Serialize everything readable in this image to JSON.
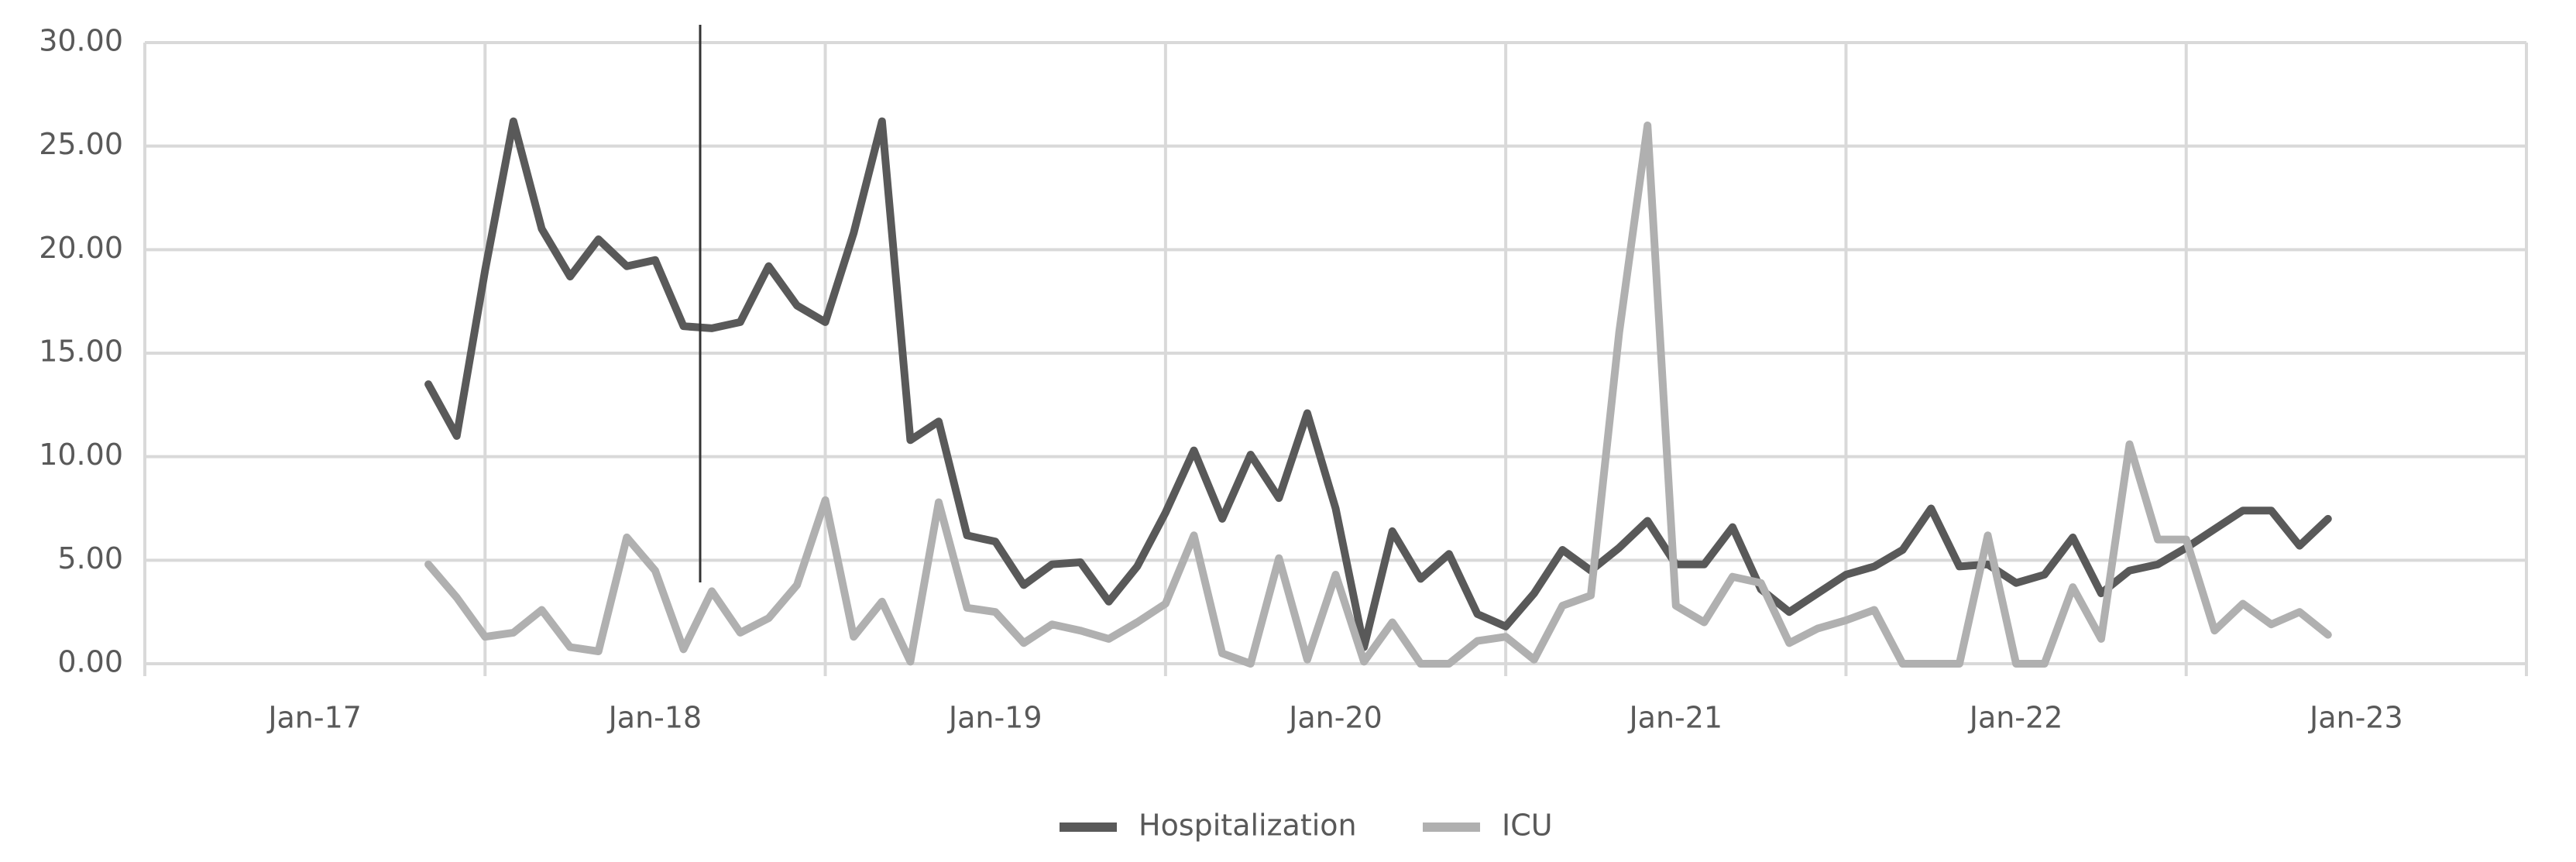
{
  "chart_data": {
    "type": "line",
    "x": [
      "May-17",
      "Jun-17",
      "Jul-17",
      "Aug-17",
      "Sep-17",
      "Oct-17",
      "Nov-17",
      "Dec-17",
      "Jan-18",
      "Feb-18",
      "Mar-18",
      "Apr-18",
      "May-18",
      "Jun-18",
      "Jul-18",
      "Aug-18",
      "Sep-18",
      "Oct-18",
      "Nov-18",
      "Dec-18",
      "Jan-19",
      "Feb-19",
      "Mar-19",
      "Apr-19",
      "May-19",
      "Jun-19",
      "Jul-19",
      "Aug-19",
      "Sep-19",
      "Oct-19",
      "Nov-19",
      "Dec-19",
      "Jan-20",
      "Feb-20",
      "Mar-20",
      "Apr-20",
      "May-20",
      "Jun-20",
      "Jul-20",
      "Aug-20",
      "Sep-20",
      "Oct-20",
      "Nov-20",
      "Dec-20",
      "Jan-21",
      "Feb-21",
      "Mar-21",
      "Apr-21",
      "May-21",
      "Jun-21",
      "Jul-21",
      "Aug-21",
      "Sep-21",
      "Oct-21",
      "Nov-21",
      "Dec-21",
      "Jan-22",
      "Feb-22",
      "Mar-22",
      "Apr-22",
      "May-22",
      "Jun-22",
      "Jul-22",
      "Aug-22",
      "Sep-22",
      "Oct-22",
      "Nov-22",
      "Dec-22"
    ],
    "series": [
      {
        "name": "Hospitalization",
        "color": "#595959",
        "values": [
          13.5,
          11,
          19,
          26.2,
          21,
          18.7,
          20.5,
          19.2,
          19.5,
          16.3,
          16.2,
          16.5,
          19.2,
          17.3,
          16.5,
          20.8,
          26.2,
          10.8,
          11.7,
          6.2,
          5.9,
          3.8,
          4.8,
          4.9,
          3,
          4.7,
          7.3,
          10.3,
          7,
          10.1,
          8,
          12.1,
          7.5,
          0.8,
          6.4,
          4.1,
          5.3,
          2.4,
          1.8,
          3.4,
          5.5,
          4.5,
          5.6,
          6.9,
          4.8,
          4.8,
          6.6,
          3.6,
          2.5,
          3.4,
          4.3,
          4.7,
          5.5,
          7.5,
          4.7,
          4.8,
          3.9,
          4.3,
          6.1,
          3.4,
          4.5,
          4.8,
          5.6,
          6.5,
          7.4,
          7.4,
          5.7,
          7
        ]
      },
      {
        "name": "ICU",
        "color": "#b0b0b0",
        "values": [
          4.8,
          3.2,
          1.3,
          1.5,
          2.6,
          0.8,
          0.6,
          6.1,
          4.5,
          0.7,
          3.5,
          1.5,
          2.2,
          3.8,
          7.9,
          1.3,
          3,
          0.1,
          7.8,
          2.7,
          2.5,
          1,
          1.9,
          1.6,
          1.2,
          2,
          2.9,
          6.2,
          0.5,
          0,
          5.1,
          0.2,
          4.3,
          0.1,
          2,
          0,
          0,
          1.1,
          1.3,
          0.2,
          2.8,
          3.3,
          16,
          26,
          2.8,
          2,
          4.2,
          3.9,
          1,
          1.7,
          2.1,
          2.6,
          0,
          0,
          0,
          6.2,
          0,
          0,
          3.7,
          1.2,
          10.6,
          6,
          6,
          1.6,
          2.9,
          1.9,
          2.5,
          1.4
        ]
      }
    ],
    "xlim": [
      "Jul-16",
      "Jul-23"
    ],
    "xticks": [
      "Jan-17",
      "Jan-18",
      "Jan-19",
      "Jan-20",
      "Jan-21",
      "Jan-22",
      "Jan-23"
    ],
    "xgrid": [
      "Jul-17",
      "Jul-18",
      "Jul-19",
      "Jul-20",
      "Jul-21",
      "Jul-22"
    ],
    "ylim": [
      0,
      30
    ],
    "yticks": [
      {
        "value": 0,
        "label": "0.00"
      },
      {
        "value": 5,
        "label": "5.00"
      },
      {
        "value": 10,
        "label": "10.00"
      },
      {
        "value": 15,
        "label": "15.00"
      },
      {
        "value": 20,
        "label": "20.00"
      },
      {
        "value": 25,
        "label": "25.00"
      },
      {
        "value": 30,
        "label": "30.00"
      }
    ],
    "grid": true,
    "legend": "bottom"
  }
}
